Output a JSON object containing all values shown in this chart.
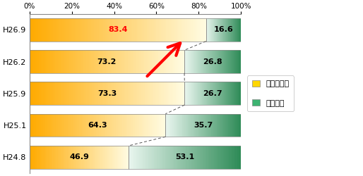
{
  "categories": [
    "H26.9",
    "H26.2",
    "H25.9",
    "H25.1",
    "H24.8"
  ],
  "know_values": [
    83.4,
    73.2,
    73.3,
    64.3,
    46.9
  ],
  "unknown_values": [
    16.6,
    26.8,
    26.7,
    35.7,
    53.1
  ],
  "know_color_left": "#FFAA00",
  "know_color_right": "#FFFBE0",
  "unknown_color_left": "#E8F5EE",
  "unknown_color_right": "#2E8B57",
  "know_label": "知っている",
  "unknown_label": "知らない",
  "know_swatch_color": "#FFD700",
  "unknown_swatch_color": "#3CB371",
  "highlight_color": "#FF0000",
  "tick_labels": [
    "0%",
    "20%",
    "40%",
    "60%",
    "80%",
    "100%"
  ],
  "tick_values": [
    0,
    20,
    40,
    60,
    80,
    100
  ],
  "bar_height": 0.72,
  "fig_width": 5.14,
  "fig_height": 2.5,
  "dpi": 100
}
